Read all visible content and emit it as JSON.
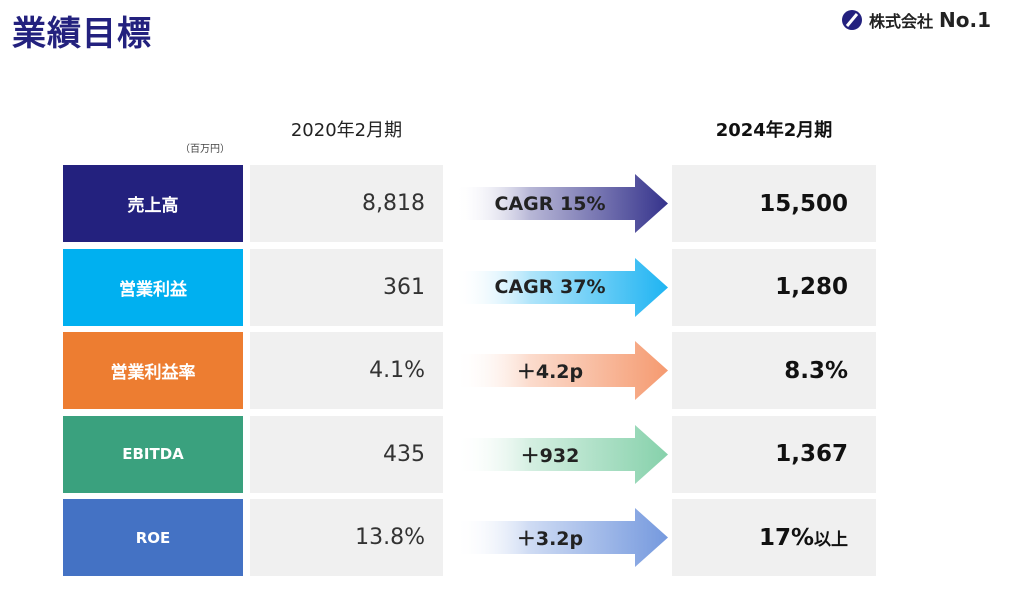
{
  "header": {
    "title": "業績目標",
    "company_prefix": "株式会社",
    "company_name": "No.1"
  },
  "table": {
    "unit": "（百万円）",
    "columns": [
      "2020年2月期",
      "2024年2月期"
    ],
    "rows": [
      {
        "label": "売上高",
        "current": "8,818",
        "growth": "CAGR 15%",
        "target": "15,500"
      },
      {
        "label": "営業利益",
        "current": "361",
        "growth": "CAGR 37%",
        "target": "1,280"
      },
      {
        "label": "営業利益率",
        "current": "4.1%",
        "growth": "＋4.2p",
        "target": "8.3%"
      },
      {
        "label": "EBITDA",
        "current": "435",
        "growth": "＋932",
        "target": "1,367"
      },
      {
        "label": "ROE",
        "current": "13.8%",
        "growth": "＋3.2p",
        "target": "17%",
        "target_suffix": "以上"
      }
    ]
  }
}
